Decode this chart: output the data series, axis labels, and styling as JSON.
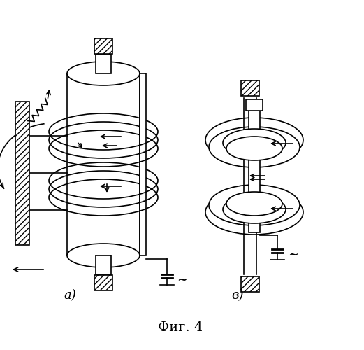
{
  "fig_title": "Фиг. 4",
  "label_a": "а)",
  "label_b": "в)",
  "bg_color": "#ffffff",
  "line_color": "#000000",
  "figsize": [
    5.21,
    5.0
  ],
  "dpi": 100
}
